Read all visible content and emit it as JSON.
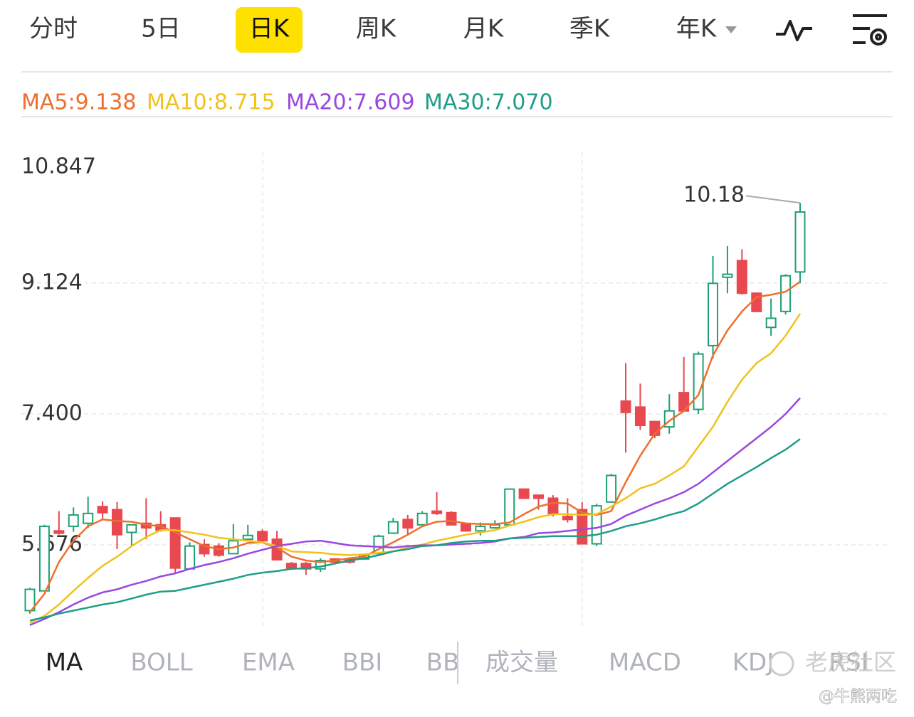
{
  "period_tabs": [
    "分时",
    "5日",
    "日K",
    "周K",
    "月K",
    "季K",
    "年K"
  ],
  "chart_data": {
    "type": "candlestick",
    "open": [
      4.81,
      5.07,
      5.86,
      5.92,
      5.96,
      6.18,
      6.14,
      5.84,
      5.96,
      5.94,
      6.03,
      5.36,
      5.68,
      5.66,
      5.56,
      5.75,
      5.85,
      5.75,
      5.43,
      5.43,
      5.36,
      5.49,
      5.49,
      5.49,
      5.56,
      5.83,
      6.01,
      5.94,
      6.12,
      6.1,
      5.95,
      5.86,
      5.9,
      5.94,
      6.41,
      6.33,
      6.29,
      6.05,
      6.14,
      5.69,
      6.24,
      7.57,
      7.49,
      7.3,
      7.23,
      7.68,
      7.46,
      8.3,
      9.2,
      9.42,
      8.99,
      8.54,
      8.75,
      9.27
    ],
    "high": [
      5.11,
      5.94,
      6.12,
      6.17,
      6.31,
      6.25,
      6.24,
      5.94,
      6.29,
      6.12,
      6.03,
      5.71,
      5.75,
      5.7,
      5.95,
      5.94,
      5.88,
      5.86,
      5.45,
      5.45,
      5.5,
      5.5,
      5.5,
      5.56,
      5.81,
      6.03,
      6.07,
      6.12,
      6.37,
      6.12,
      5.96,
      5.97,
      6.0,
      6.42,
      6.42,
      6.34,
      6.33,
      6.29,
      6.24,
      6.22,
      6.61,
      8.07,
      7.8,
      7.31,
      7.66,
      8.15,
      8.22,
      9.48,
      9.61,
      9.57,
      9.0,
      8.92,
      9.24,
      10.18
    ],
    "low": [
      4.77,
      5.07,
      5.81,
      5.85,
      5.9,
      6.01,
      5.62,
      5.66,
      5.75,
      5.85,
      5.31,
      5.36,
      5.52,
      5.52,
      5.56,
      5.75,
      5.73,
      5.47,
      5.35,
      5.28,
      5.32,
      5.44,
      5.43,
      5.48,
      5.55,
      5.82,
      5.8,
      5.93,
      6.07,
      5.93,
      5.85,
      5.8,
      5.89,
      5.93,
      6.28,
      6.14,
      6.05,
      5.97,
      5.69,
      5.66,
      6.23,
      6.89,
      7.19,
      7.08,
      7.14,
      7.43,
      7.4,
      8.13,
      8.99,
      8.97,
      8.74,
      8.43,
      8.71,
      9.12
    ],
    "close": [
      5.09,
      5.92,
      5.83,
      6.07,
      6.09,
      6.1,
      5.81,
      5.94,
      5.9,
      5.87,
      5.37,
      5.66,
      5.56,
      5.54,
      5.73,
      5.8,
      5.73,
      5.48,
      5.37,
      5.36,
      5.47,
      5.45,
      5.45,
      5.54,
      5.79,
      5.98,
      5.9,
      6.09,
      6.09,
      5.94,
      5.86,
      5.92,
      5.94,
      6.41,
      6.29,
      6.29,
      6.09,
      6.01,
      5.69,
      6.19,
      6.59,
      7.42,
      7.25,
      7.12,
      7.44,
      7.44,
      8.19,
      9.12,
      9.24,
      8.99,
      8.75,
      8.66,
      9.22,
      10.06
    ],
    "up_color": "#1ea172",
    "down_color": "#e8484f",
    "series": [
      {
        "name": "MA5:9.138",
        "color": "#ee6f2d",
        "values": [
          4.79,
          5.03,
          5.45,
          5.73,
          5.92,
          6.01,
          5.99,
          5.98,
          5.94,
          5.92,
          5.84,
          5.75,
          5.66,
          5.62,
          5.64,
          5.7,
          5.71,
          5.64,
          5.52,
          5.47,
          5.45,
          5.47,
          5.5,
          5.52,
          5.62,
          5.71,
          5.81,
          5.92,
          5.98,
          5.99,
          5.96,
          5.95,
          5.95,
          5.97,
          6.08,
          6.18,
          6.23,
          6.22,
          6.1,
          6.07,
          6.12,
          6.5,
          6.85,
          7.14,
          7.31,
          7.44,
          7.65,
          8.17,
          8.5,
          8.75,
          8.94,
          8.97,
          9.01,
          9.14
        ]
      },
      {
        "name": "MA10:8.715",
        "color": "#f1c21b",
        "values": [
          4.65,
          4.74,
          4.89,
          5.07,
          5.24,
          5.4,
          5.52,
          5.66,
          5.78,
          5.87,
          5.87,
          5.84,
          5.81,
          5.77,
          5.75,
          5.73,
          5.71,
          5.66,
          5.59,
          5.58,
          5.57,
          5.55,
          5.54,
          5.55,
          5.57,
          5.59,
          5.64,
          5.68,
          5.73,
          5.77,
          5.81,
          5.84,
          5.87,
          5.93,
          5.98,
          6.04,
          6.08,
          6.08,
          6.07,
          6.08,
          6.18,
          6.29,
          6.42,
          6.48,
          6.59,
          6.71,
          6.97,
          7.23,
          7.56,
          7.85,
          8.07,
          8.2,
          8.43,
          8.72
        ]
      },
      {
        "name": "MA20:7.609",
        "color": "#9a48df",
        "values": [
          4.62,
          4.7,
          4.79,
          4.89,
          4.98,
          5.05,
          5.09,
          5.15,
          5.2,
          5.26,
          5.3,
          5.36,
          5.41,
          5.45,
          5.5,
          5.56,
          5.61,
          5.66,
          5.69,
          5.72,
          5.73,
          5.7,
          5.67,
          5.66,
          5.65,
          5.64,
          5.66,
          5.67,
          5.67,
          5.68,
          5.69,
          5.7,
          5.72,
          5.76,
          5.78,
          5.83,
          5.84,
          5.86,
          5.88,
          5.9,
          5.95,
          6.06,
          6.14,
          6.22,
          6.29,
          6.37,
          6.48,
          6.63,
          6.78,
          6.93,
          7.08,
          7.23,
          7.4,
          7.61
        ]
      },
      {
        "name": "MA30:7.070",
        "color": "#1f9d88",
        "values": [
          4.68,
          4.72,
          4.77,
          4.81,
          4.85,
          4.89,
          4.92,
          4.97,
          5.02,
          5.06,
          5.07,
          5.11,
          5.15,
          5.19,
          5.23,
          5.28,
          5.31,
          5.33,
          5.36,
          5.37,
          5.39,
          5.43,
          5.47,
          5.5,
          5.54,
          5.59,
          5.62,
          5.66,
          5.67,
          5.7,
          5.72,
          5.73,
          5.73,
          5.76,
          5.77,
          5.78,
          5.79,
          5.79,
          5.79,
          5.81,
          5.86,
          5.92,
          5.96,
          6.01,
          6.07,
          6.12,
          6.22,
          6.35,
          6.48,
          6.59,
          6.7,
          6.82,
          6.93,
          7.07
        ]
      }
    ],
    "ylim": [
      4.608,
      10.847
    ],
    "yticks": [
      10.847,
      9.124,
      {
        "value": 7.4,
        "label": "7.400"
      },
      5.676
    ],
    "grid": true
  },
  "indicator_tabs": [
    "MA",
    "BOLL",
    "EMA",
    "BBI",
    "BB",
    "成交量",
    "MACD",
    "KDJ",
    "RSI"
  ],
  "watermark": {
    "brand": "老虎社区",
    "author": "@牛熊两吃"
  }
}
